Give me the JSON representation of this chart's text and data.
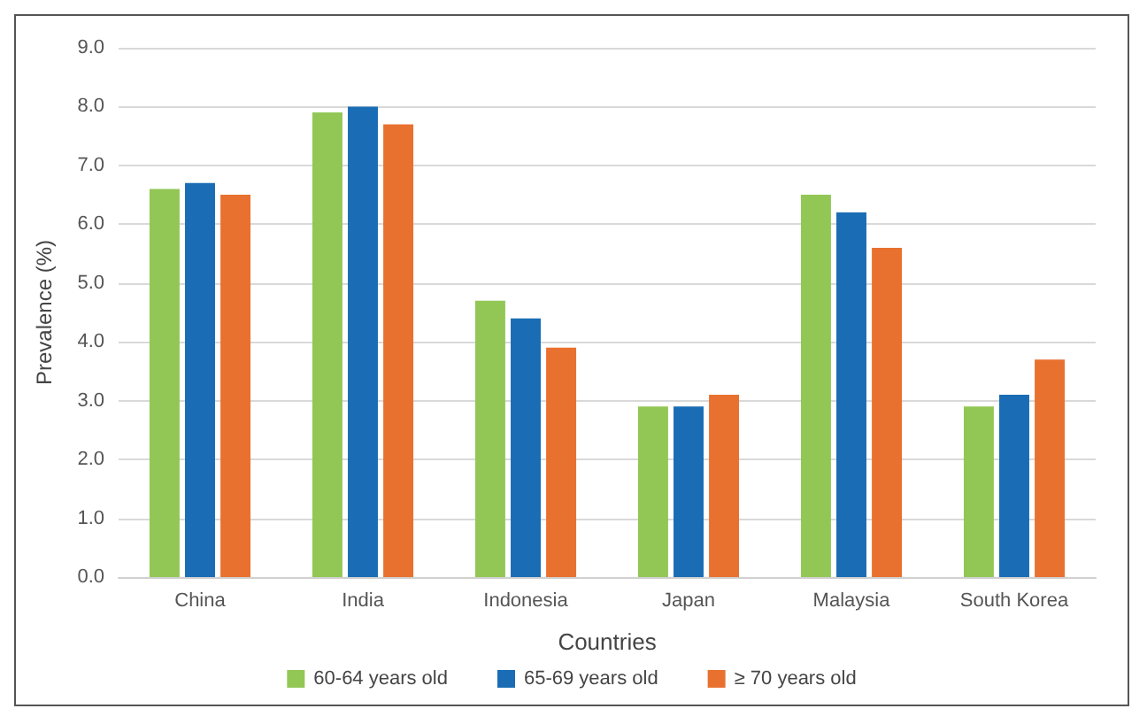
{
  "chart_data": {
    "type": "bar",
    "xlabel": "Countries",
    "ylabel": "Prevalence (%)",
    "categories": [
      "China",
      "India",
      "Indonesia",
      "Japan",
      "Malaysia",
      "South Korea"
    ],
    "series": [
      {
        "name": "60-64 years old",
        "color": "#92c755",
        "values": [
          6.6,
          7.9,
          4.7,
          2.9,
          6.5,
          2.9
        ]
      },
      {
        "name": "65-69 years old",
        "color": "#1a6db5",
        "values": [
          6.7,
          8.0,
          4.4,
          2.9,
          6.2,
          3.1
        ]
      },
      {
        "name": "≥ 70 years old",
        "color": "#e9712f",
        "values": [
          6.5,
          7.7,
          3.9,
          3.1,
          5.6,
          3.7
        ]
      }
    ],
    "ylim": [
      0,
      9
    ],
    "yticks": [
      {
        "value": 0,
        "label": "0.0"
      },
      {
        "value": 1,
        "label": "1.0"
      },
      {
        "value": 2,
        "label": "2.0"
      },
      {
        "value": 3,
        "label": "3.0"
      },
      {
        "value": 4,
        "label": "4.0"
      },
      {
        "value": 5,
        "label": "5.0"
      },
      {
        "value": 6,
        "label": "6.0"
      },
      {
        "value": 7,
        "label": "7.0"
      },
      {
        "value": 8,
        "label": "8.0"
      },
      {
        "value": 9,
        "label": "9.0"
      }
    ],
    "grid": "y",
    "legend": "bottom"
  }
}
